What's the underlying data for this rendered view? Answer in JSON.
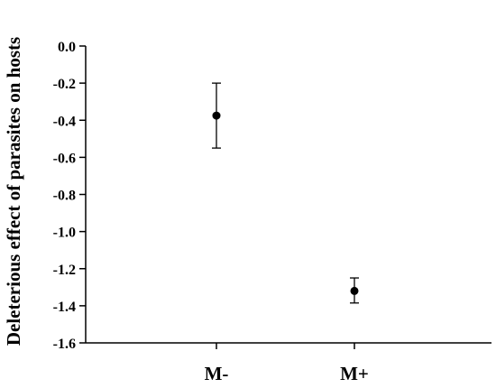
{
  "chart_data": {
    "type": "scatter",
    "title": "",
    "xlabel": "",
    "ylabel": "Deleterious effect of parasites on hosts",
    "categories": [
      "M-",
      "M+"
    ],
    "series": [
      {
        "values": [
          -0.375,
          -1.32
        ],
        "error_upper": [
          -0.2,
          -1.25
        ],
        "error_lower": [
          -0.55,
          -1.385
        ]
      }
    ],
    "ylim": [
      -1.6,
      0.0
    ],
    "y_ticks": [
      0.0,
      -0.2,
      -0.4,
      -0.6,
      -0.8,
      -1.0,
      -1.2,
      -1.4,
      -1.6
    ],
    "y_tick_labels": [
      "0.0",
      "-0.2",
      "-0.4",
      "-0.6",
      "-0.8",
      "-1.0",
      "-1.2",
      "-1.4",
      "-1.6"
    ],
    "grid": false,
    "legend": "none",
    "marker_color": "#000000"
  }
}
